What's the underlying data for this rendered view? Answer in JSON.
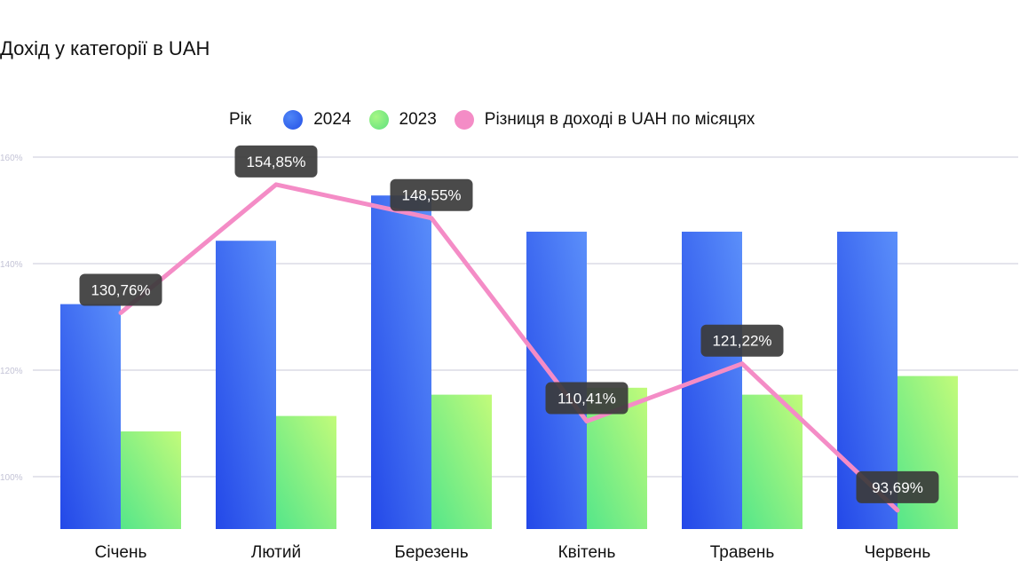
{
  "title": "Дохід у категорії в UAH",
  "legend": {
    "title": "Рік",
    "s2024": "2024",
    "s2023": "2023",
    "diff": "Різниця в доході в UAH по місяцях"
  },
  "colors": {
    "bar2024_top": "#5b8ffa",
    "bar2024_bottom": "#2348e8",
    "bar2023_top": "#c2fb7a",
    "bar2023_bottom": "#55e68a",
    "line": "#f48cc6",
    "label_bg": "#3b3b3b",
    "grid": "#c8c8da"
  },
  "chart_data": {
    "type": "bar",
    "categories": [
      "Січень",
      "Лютий",
      "Березень",
      "Квітень",
      "Травень",
      "Червень"
    ],
    "series": [
      {
        "name": "2024",
        "type": "bar",
        "values": [
          132.4,
          144.3,
          152.8,
          146.0,
          146.0,
          146.0
        ]
      },
      {
        "name": "2023",
        "type": "bar",
        "values": [
          108.5,
          111.4,
          115.4,
          116.7,
          115.4,
          118.9
        ]
      },
      {
        "name": "Різниця в доході в UAH по місяцях",
        "type": "line",
        "values": [
          130.76,
          154.85,
          148.55,
          110.41,
          121.22,
          93.69
        ],
        "labels": [
          "130,76%",
          "154,85%",
          "148,55%",
          "110,41%",
          "121,22%",
          "93,69%"
        ]
      }
    ],
    "yticks": [
      "100%",
      "120%",
      "140%",
      "160%"
    ],
    "ytick_values": [
      100,
      120,
      140,
      160
    ],
    "ylim": [
      90.17,
      162.5
    ],
    "grid": true,
    "legend": "top-center"
  }
}
